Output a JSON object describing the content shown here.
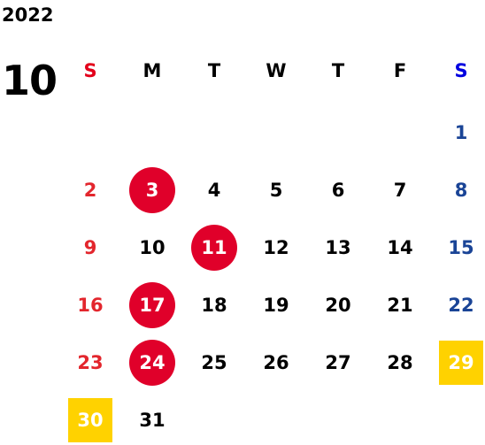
{
  "year": "2022",
  "month": "10",
  "colors": {
    "sunday": "#e3262d",
    "saturday": "#1a4496",
    "weekday": "#000000",
    "holiday_circle": "#e0002a",
    "highlight_square": "#ffd200",
    "on_mark_text": "#ffffff"
  },
  "weekdays": [
    {
      "label": "S",
      "type": "sun"
    },
    {
      "label": "M",
      "type": "wd"
    },
    {
      "label": "T",
      "type": "wd"
    },
    {
      "label": "W",
      "type": "wd"
    },
    {
      "label": "T",
      "type": "wd"
    },
    {
      "label": "F",
      "type": "wd"
    },
    {
      "label": "S",
      "type": "sat"
    }
  ],
  "days": [
    {
      "d": "1",
      "col": 6,
      "row": 0,
      "type": "sat"
    },
    {
      "d": "2",
      "col": 0,
      "row": 1,
      "type": "sun"
    },
    {
      "d": "3",
      "col": 1,
      "row": 1,
      "type": "wd",
      "mark": "circle"
    },
    {
      "d": "4",
      "col": 2,
      "row": 1,
      "type": "wd"
    },
    {
      "d": "5",
      "col": 3,
      "row": 1,
      "type": "wd"
    },
    {
      "d": "6",
      "col": 4,
      "row": 1,
      "type": "wd"
    },
    {
      "d": "7",
      "col": 5,
      "row": 1,
      "type": "wd"
    },
    {
      "d": "8",
      "col": 6,
      "row": 1,
      "type": "sat"
    },
    {
      "d": "9",
      "col": 0,
      "row": 2,
      "type": "sun"
    },
    {
      "d": "10",
      "col": 1,
      "row": 2,
      "type": "wd"
    },
    {
      "d": "11",
      "col": 2,
      "row": 2,
      "type": "wd",
      "mark": "circle"
    },
    {
      "d": "12",
      "col": 3,
      "row": 2,
      "type": "wd"
    },
    {
      "d": "13",
      "col": 4,
      "row": 2,
      "type": "wd"
    },
    {
      "d": "14",
      "col": 5,
      "row": 2,
      "type": "wd"
    },
    {
      "d": "15",
      "col": 6,
      "row": 2,
      "type": "sat"
    },
    {
      "d": "16",
      "col": 0,
      "row": 3,
      "type": "sun"
    },
    {
      "d": "17",
      "col": 1,
      "row": 3,
      "type": "wd",
      "mark": "circle"
    },
    {
      "d": "18",
      "col": 2,
      "row": 3,
      "type": "wd"
    },
    {
      "d": "19",
      "col": 3,
      "row": 3,
      "type": "wd"
    },
    {
      "d": "20",
      "col": 4,
      "row": 3,
      "type": "wd"
    },
    {
      "d": "21",
      "col": 5,
      "row": 3,
      "type": "wd"
    },
    {
      "d": "22",
      "col": 6,
      "row": 3,
      "type": "sat"
    },
    {
      "d": "23",
      "col": 0,
      "row": 4,
      "type": "sun"
    },
    {
      "d": "24",
      "col": 1,
      "row": 4,
      "type": "wd",
      "mark": "circle"
    },
    {
      "d": "25",
      "col": 2,
      "row": 4,
      "type": "wd"
    },
    {
      "d": "26",
      "col": 3,
      "row": 4,
      "type": "wd"
    },
    {
      "d": "27",
      "col": 4,
      "row": 4,
      "type": "wd"
    },
    {
      "d": "28",
      "col": 5,
      "row": 4,
      "type": "wd"
    },
    {
      "d": "29",
      "col": 6,
      "row": 4,
      "type": "sat",
      "mark": "square"
    },
    {
      "d": "30",
      "col": 0,
      "row": 5,
      "type": "sun",
      "mark": "square"
    },
    {
      "d": "31",
      "col": 1,
      "row": 5,
      "type": "wd"
    }
  ]
}
